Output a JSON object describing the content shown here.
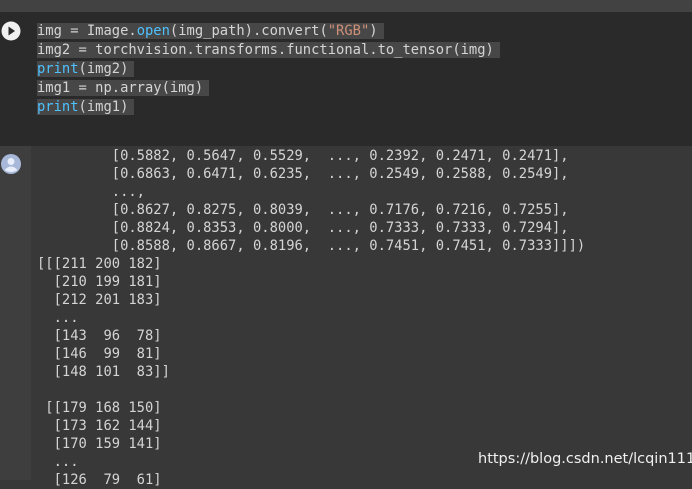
{
  "code": {
    "lines": [
      [
        {
          "text": "img = Image."
        },
        {
          "text": "open",
          "color": "#4fc1ff"
        },
        {
          "text": "(img_path).convert("
        },
        {
          "text": "\"RGB\"",
          "color": "#ce9178"
        },
        {
          "text": ")"
        }
      ],
      [
        {
          "text": "img2 = torchvision.transforms.functional.to_tensor(img)"
        }
      ],
      [
        {
          "text": "print",
          "color": "#4fc1ff"
        },
        {
          "text": "(img2)"
        }
      ],
      [
        {
          "text": "img1 = np.array(img)"
        }
      ],
      [
        {
          "text": "print",
          "color": "#4fc1ff"
        },
        {
          "text": "(img1)"
        }
      ]
    ]
  },
  "output": {
    "blocks": [
      [
        "         [0.5882, 0.5647, 0.5529,  ..., 0.2392, 0.2471, 0.2471],",
        "         [0.6863, 0.6471, 0.6235,  ..., 0.2549, 0.2588, 0.2549],",
        "         ...,",
        "         [0.8627, 0.8275, 0.8039,  ..., 0.7176, 0.7216, 0.7255],",
        "         [0.8824, 0.8353, 0.8000,  ..., 0.7333, 0.7333, 0.7294],",
        "         [0.8588, 0.8667, 0.8196,  ..., 0.7451, 0.7451, 0.7333]]])",
        "[[[211 200 182]",
        "  [210 199 181]",
        "  [212 201 183]",
        "  ...",
        "  [143  96  78]",
        "  [146  99  81]",
        "  [148 101  83]]"
      ],
      [
        " [[179 168 150]",
        "  [173 162 144]",
        "  [170 159 141]",
        "  ...",
        "  [126  79  61]"
      ]
    ]
  },
  "watermark": "https://blog.csdn.net/lcqin111"
}
